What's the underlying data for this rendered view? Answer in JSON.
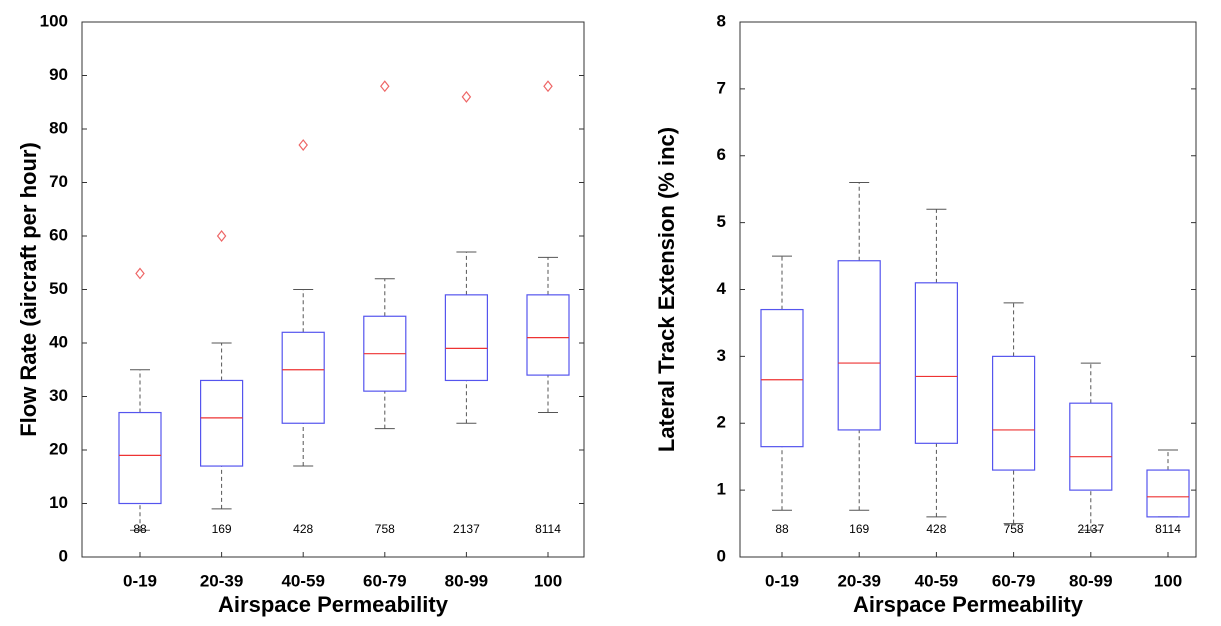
{
  "chart_data": [
    {
      "type": "box",
      "x_label": "Airspace Permeability",
      "y_label": "Flow Rate (aircraft per hour)",
      "categories": [
        "0-19",
        "20-39",
        "40-59",
        "60-79",
        "80-99",
        "100"
      ],
      "whisker_low": [
        5,
        9,
        17,
        24,
        25,
        27
      ],
      "q1": [
        10,
        17,
        25,
        31,
        33,
        34
      ],
      "median": [
        19,
        26,
        35,
        38,
        39,
        41
      ],
      "q3": [
        27,
        33,
        42,
        45,
        49,
        49
      ],
      "whisker_high": [
        35,
        40,
        50,
        52,
        57,
        56
      ],
      "outliers": [
        [
          53
        ],
        [
          60
        ],
        [
          77
        ],
        [
          88
        ],
        [
          86
        ],
        [
          88
        ]
      ],
      "sample_sizes": [
        88,
        169,
        428,
        758,
        2137,
        8114
      ],
      "ylim": [
        0,
        100
      ],
      "yticks": [
        0,
        10,
        20,
        30,
        40,
        50,
        60,
        70,
        80,
        90,
        100
      ],
      "box_color": "#5555ee",
      "median_color": "#ee3333",
      "outlier_color": "#ee6666",
      "whisker_color": "#555555"
    },
    {
      "type": "box",
      "x_label": "Airspace Permeability",
      "y_label": "Lateral Track Extension (% inc)",
      "categories": [
        "0-19",
        "20-39",
        "40-59",
        "60-79",
        "80-99",
        "100"
      ],
      "whisker_low": [
        0.7,
        0.7,
        0.6,
        0.5,
        0.4,
        0.6
      ],
      "q1": [
        1.65,
        1.9,
        1.7,
        1.3,
        1.0,
        0.6
      ],
      "median": [
        2.65,
        2.9,
        2.7,
        1.9,
        1.5,
        0.9
      ],
      "q3": [
        3.7,
        4.43,
        4.1,
        3.0,
        2.3,
        1.3
      ],
      "whisker_high": [
        4.5,
        5.6,
        5.2,
        3.8,
        2.9,
        1.6
      ],
      "sample_sizes": [
        88,
        169,
        428,
        758,
        2137,
        8114
      ],
      "ylim": [
        0,
        8
      ],
      "yticks": [
        0,
        1,
        2,
        3,
        4,
        5,
        6,
        7,
        8
      ],
      "box_color": "#5555ee",
      "median_color": "#ee3333",
      "outlier_color": "#ee6666",
      "whisker_color": "#555555"
    }
  ]
}
